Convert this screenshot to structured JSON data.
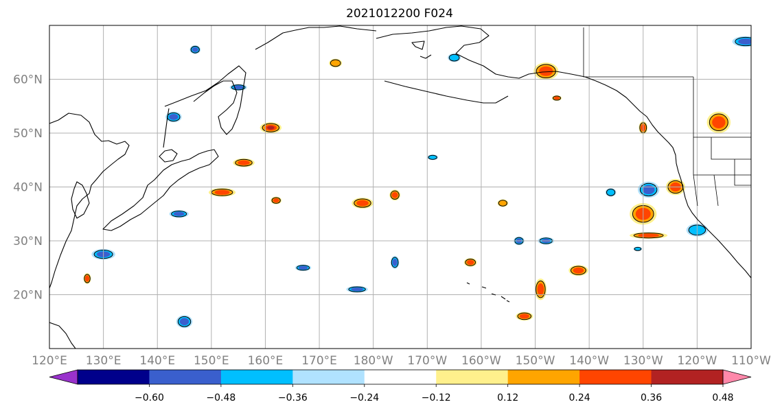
{
  "title": "2021012200 F024",
  "map": {
    "lon_range": [
      120,
      250
    ],
    "lat_range": [
      10,
      70
    ],
    "lon_ticks": [
      {
        "lon": 120,
        "label": "120°E"
      },
      {
        "lon": 130,
        "label": "130°E"
      },
      {
        "lon": 140,
        "label": "140°E"
      },
      {
        "lon": 150,
        "label": "150°E"
      },
      {
        "lon": 160,
        "label": "160°E"
      },
      {
        "lon": 170,
        "label": "170°E"
      },
      {
        "lon": 180,
        "label": "180°W"
      },
      {
        "lon": 190,
        "label": "170°W"
      },
      {
        "lon": 200,
        "label": "160°W"
      },
      {
        "lon": 210,
        "label": "150°W"
      },
      {
        "lon": 220,
        "label": "140°W"
      },
      {
        "lon": 230,
        "label": "130°W"
      },
      {
        "lon": 240,
        "label": "120°W"
      },
      {
        "lon": 250,
        "label": "110°W"
      }
    ],
    "lat_ticks": [
      {
        "lat": 20,
        "label": "20°N"
      },
      {
        "lat": 30,
        "label": "30°N"
      },
      {
        "lat": 40,
        "label": "40°N"
      },
      {
        "lat": 50,
        "label": "50°N"
      },
      {
        "lat": 60,
        "label": "60°N"
      }
    ],
    "gridlines": true,
    "coastline_color": "#000000",
    "grid_color": "#b0b0b0"
  },
  "colorbar": {
    "colors": [
      "#9932cc",
      "#00008b",
      "#3a5fcd",
      "#00bfff",
      "#b0e2ff",
      "#ffffff",
      "#fff08c",
      "#ffa500",
      "#ff4500",
      "#b22222",
      "#ff88aa"
    ],
    "labels": [
      "−0.60",
      "−0.48",
      "−0.36",
      "−0.24",
      "−0.12",
      "0.12",
      "0.24",
      "0.36",
      "0.48",
      "0.60"
    ],
    "extend": "both"
  },
  "features": [
    {
      "lon": 212,
      "lat": 61.5,
      "rx": 2.3,
      "ry": 1.6,
      "level": 3
    },
    {
      "lon": 161,
      "lat": 51,
      "rx": 2.0,
      "ry": 1.0,
      "level": 4
    },
    {
      "lon": 156,
      "lat": 44.5,
      "rx": 2.0,
      "ry": 0.8,
      "level": 3
    },
    {
      "lon": 152,
      "lat": 39,
      "rx": 2.5,
      "ry": 0.8,
      "level": 3
    },
    {
      "lon": 178,
      "lat": 37,
      "rx": 2.0,
      "ry": 1.0,
      "level": 3
    },
    {
      "lon": 230,
      "lat": 35,
      "rx": 2.5,
      "ry": 2.0,
      "level": 3
    },
    {
      "lon": 231,
      "lat": 31,
      "rx": 3.5,
      "ry": 0.6,
      "level": 3
    },
    {
      "lon": 244,
      "lat": 52,
      "rx": 2.2,
      "ry": 2.0,
      "level": 3
    },
    {
      "lon": 236,
      "lat": 40,
      "rx": 1.8,
      "ry": 1.5,
      "level": 3
    },
    {
      "lon": 198,
      "lat": 26,
      "rx": 1.2,
      "ry": 0.8,
      "level": 3
    },
    {
      "lon": 218,
      "lat": 24.5,
      "rx": 1.8,
      "ry": 1.0,
      "level": 3
    },
    {
      "lon": 214,
      "lat": 56.5,
      "rx": 0.9,
      "ry": 0.5,
      "level": 3
    },
    {
      "lon": 211,
      "lat": 21,
      "rx": 1.1,
      "ry": 2.0,
      "level": 3
    },
    {
      "lon": 208,
      "lat": 16,
      "rx": 1.6,
      "ry": 0.8,
      "level": 3
    },
    {
      "lon": 184,
      "lat": 38.5,
      "rx": 1.0,
      "ry": 1.0,
      "level": 3
    },
    {
      "lon": 162,
      "lat": 37.5,
      "rx": 1.0,
      "ry": 0.7,
      "level": 3
    },
    {
      "lon": 230,
      "lat": 51,
      "rx": 0.8,
      "ry": 1.2,
      "level": 3
    },
    {
      "lon": 143,
      "lat": 53,
      "rx": 1.5,
      "ry": 1.0,
      "level": -3
    },
    {
      "lon": 130,
      "lat": 27.5,
      "rx": 2.2,
      "ry": 1.0,
      "level": -3
    },
    {
      "lon": 144,
      "lat": 35,
      "rx": 1.8,
      "ry": 0.7,
      "level": -3
    },
    {
      "lon": 145,
      "lat": 15,
      "rx": 1.5,
      "ry": 1.2,
      "level": -3
    },
    {
      "lon": 231,
      "lat": 39.5,
      "rx": 2.0,
      "ry": 1.5,
      "level": -3
    },
    {
      "lon": 240,
      "lat": 32,
      "rx": 2.0,
      "ry": 1.2,
      "level": -2
    },
    {
      "lon": 155,
      "lat": 58.5,
      "rx": 1.6,
      "ry": 0.6,
      "level": -3
    },
    {
      "lon": 147,
      "lat": 65.5,
      "rx": 1.0,
      "ry": 0.8,
      "level": -3
    },
    {
      "lon": 167,
      "lat": 25,
      "rx": 1.5,
      "ry": 0.6,
      "level": -3
    },
    {
      "lon": 177,
      "lat": 21,
      "rx": 2.0,
      "ry": 0.6,
      "level": -3
    },
    {
      "lon": 207,
      "lat": 30,
      "rx": 1.0,
      "ry": 0.8,
      "level": -3
    },
    {
      "lon": 212,
      "lat": 30,
      "rx": 1.5,
      "ry": 0.7,
      "level": -3
    },
    {
      "lon": 249,
      "lat": 67,
      "rx": 2.5,
      "ry": 1.0,
      "level": -3
    },
    {
      "lon": 184,
      "lat": 26,
      "rx": 0.8,
      "ry": 1.2,
      "level": -3
    },
    {
      "lon": 229,
      "lat": 28.5,
      "rx": 0.8,
      "ry": 0.4,
      "level": -2
    },
    {
      "lon": 173,
      "lat": 63,
      "rx": 1.2,
      "ry": 0.8,
      "level": 2
    },
    {
      "lon": 195,
      "lat": 64,
      "rx": 1.2,
      "ry": 0.8,
      "level": -2
    },
    {
      "lon": 224,
      "lat": 39,
      "rx": 1.0,
      "ry": 0.8,
      "level": -2
    },
    {
      "lon": 127,
      "lat": 23,
      "rx": 0.7,
      "ry": 1.0,
      "level": 3
    },
    {
      "lon": 191,
      "lat": 45.5,
      "rx": 1.0,
      "ry": 0.5,
      "level": -2
    },
    {
      "lon": 204,
      "lat": 37,
      "rx": 1.0,
      "ry": 0.7,
      "level": 2
    }
  ]
}
